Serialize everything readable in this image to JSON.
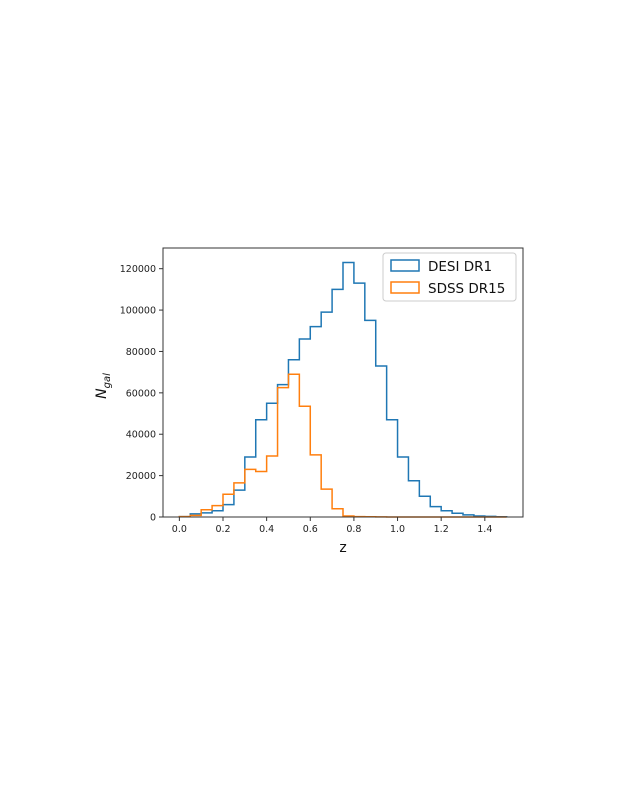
{
  "chart_data": {
    "type": "histogram",
    "xlabel": "z",
    "ylabel_main": "N",
    "ylabel_sub": "gal",
    "xlim": [
      -0.075,
      1.575
    ],
    "ylim": [
      0,
      130000
    ],
    "grid": false,
    "legend_position": "top-right",
    "x_ticks": [
      0.0,
      0.2,
      0.4,
      0.6,
      0.8,
      1.0,
      1.2,
      1.4
    ],
    "x_tick_labels": [
      "0.0",
      "0.2",
      "0.4",
      "0.6",
      "0.8",
      "1.0",
      "1.2",
      "1.4"
    ],
    "y_ticks": [
      0,
      20000,
      40000,
      60000,
      80000,
      100000,
      120000
    ],
    "y_tick_labels": [
      "0",
      "20000",
      "40000",
      "60000",
      "80000",
      "100000",
      "120000"
    ],
    "bin_edges": [
      0.0,
      0.05,
      0.1,
      0.15,
      0.2,
      0.25,
      0.3,
      0.35,
      0.4,
      0.45,
      0.5,
      0.55,
      0.6,
      0.65,
      0.7,
      0.75,
      0.8,
      0.85,
      0.9,
      0.95,
      1.0,
      1.05,
      1.1,
      1.15,
      1.2,
      1.25,
      1.3,
      1.35,
      1.4,
      1.45,
      1.5
    ],
    "series": [
      {
        "name": "DESI DR1",
        "color": "#1f77b4",
        "values": [
          200,
          1500,
          2000,
          3000,
          6000,
          13000,
          29000,
          47000,
          55000,
          64000,
          76000,
          86000,
          92000,
          99000,
          110000,
          123000,
          113000,
          95000,
          73000,
          47000,
          29000,
          17500,
          10000,
          5000,
          3000,
          1800,
          1000,
          500,
          300,
          150
        ]
      },
      {
        "name": "SDSS DR15",
        "color": "#ff7f0e",
        "values": [
          200,
          800,
          3500,
          5500,
          11000,
          16500,
          23000,
          22000,
          29500,
          62500,
          69000,
          53500,
          30000,
          13500,
          4000,
          500,
          200,
          100,
          50,
          20,
          10,
          0,
          0,
          0,
          0,
          0,
          0,
          0,
          0,
          0
        ]
      }
    ]
  }
}
